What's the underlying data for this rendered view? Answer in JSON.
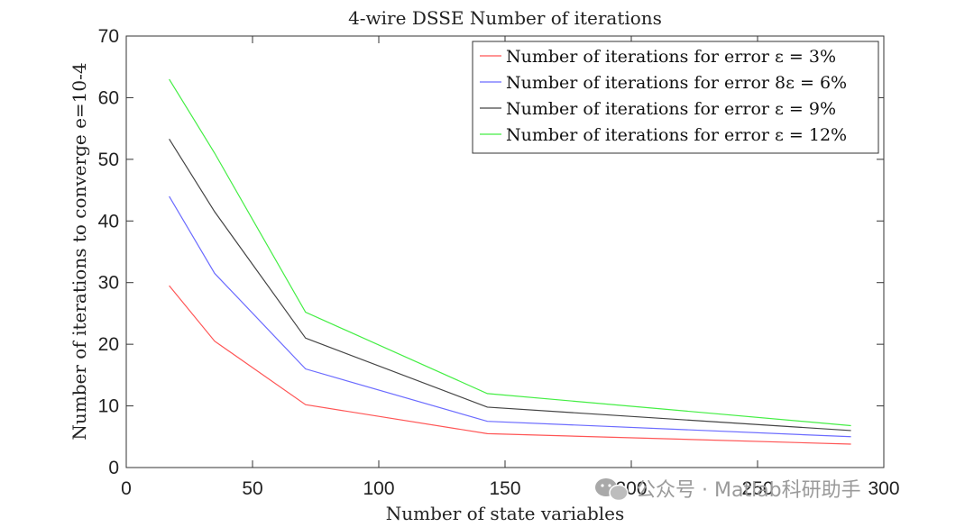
{
  "chart_data": {
    "type": "line",
    "title": "4-wire DSSE Number of iterations",
    "xlabel": "Number of state variables",
    "ylabel": "Number of iterations to converge e=10-4",
    "xlim": [
      0,
      300
    ],
    "ylim": [
      0,
      70
    ],
    "xticks": [
      0,
      50,
      100,
      150,
      200,
      250,
      300
    ],
    "yticks": [
      0,
      10,
      20,
      30,
      40,
      50,
      60,
      70
    ],
    "grid": false,
    "legend_position": "top-right",
    "x": [
      17,
      35,
      71,
      143,
      287
    ],
    "series": [
      {
        "name": "Number of iterations for error ε = 3%",
        "color": "#ff5555",
        "values": [
          29.5,
          20.5,
          10.2,
          5.5,
          3.8
        ]
      },
      {
        "name": "Number of iterations for error 8ε = 6%",
        "color": "#6b6bff",
        "values": [
          44,
          31.5,
          16,
          7.5,
          5.0
        ]
      },
      {
        "name": "Number of iterations for error ε = 9%",
        "color": "#444444",
        "values": [
          53.3,
          41.5,
          21,
          9.8,
          6.0
        ]
      },
      {
        "name": "Number of iterations for error ε = 12%",
        "color": "#44ee44",
        "values": [
          63,
          51,
          25.2,
          12,
          6.8
        ]
      }
    ]
  },
  "watermark": {
    "icon": "wechat-icon",
    "text": "公众号 · Matlab科研助手"
  }
}
